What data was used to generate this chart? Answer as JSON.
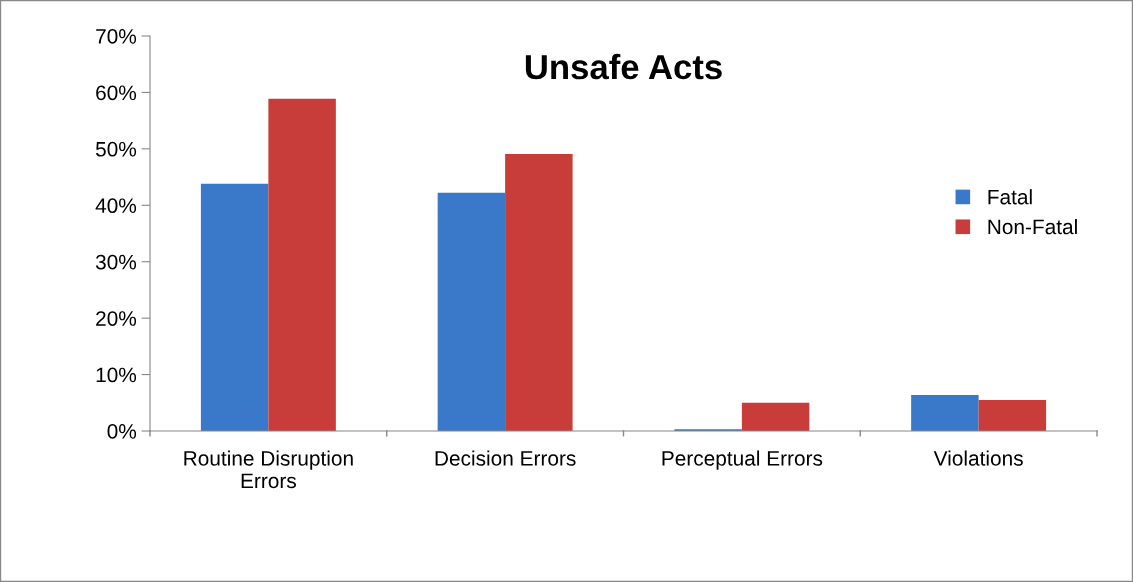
{
  "chart_data": {
    "type": "bar",
    "title": "Unsafe Acts",
    "categories": [
      "Routine Disruption\nErrors",
      "Decision Errors",
      "Perceptual Errors",
      "Violations"
    ],
    "series": [
      {
        "name": "Fatal",
        "color": "#3a78c9",
        "values": [
          43.8,
          42.2,
          0.3,
          6.4
        ]
      },
      {
        "name": "Non-Fatal",
        "color": "#c83c3a",
        "values": [
          58.9,
          49.1,
          5.0,
          5.5
        ]
      }
    ],
    "ylim": [
      0,
      70
    ],
    "yticks": [
      {
        "value": 0,
        "label": "0%"
      },
      {
        "value": 10,
        "label": "10%"
      },
      {
        "value": 20,
        "label": "20%"
      },
      {
        "value": 30,
        "label": "30%"
      },
      {
        "value": 40,
        "label": "40%"
      },
      {
        "value": 50,
        "label": "50%"
      },
      {
        "value": 60,
        "label": "60%"
      },
      {
        "value": 70,
        "label": "70%"
      }
    ],
    "grid": false,
    "legend": "right"
  }
}
